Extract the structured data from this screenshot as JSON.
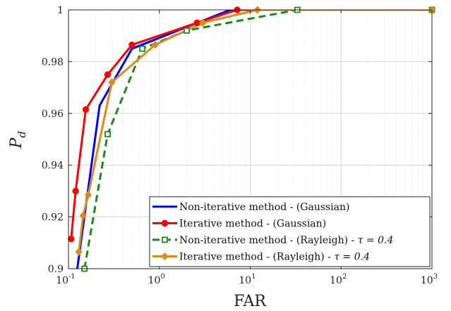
{
  "chart_data": {
    "type": "line",
    "title": "",
    "xlabel": "FAR",
    "ylabel_main": "P",
    "ylabel_sub": "d",
    "xscale": "log",
    "xlim": [
      0.1,
      1000
    ],
    "ylim": [
      0.9,
      1.0
    ],
    "grid": true,
    "legend_position": "bottom-right",
    "x_ticks": [
      {
        "value": 0.1,
        "base": "10",
        "exp": "-1"
      },
      {
        "value": 1,
        "base": "10",
        "exp": "0"
      },
      {
        "value": 10,
        "base": "10",
        "exp": "1"
      },
      {
        "value": 100,
        "base": "10",
        "exp": "2"
      },
      {
        "value": 1000,
        "base": "10",
        "exp": "3"
      }
    ],
    "y_ticks": [
      {
        "value": 0.9,
        "label": "0.9"
      },
      {
        "value": 0.92,
        "label": "0.92"
      },
      {
        "value": 0.94,
        "label": "0.94"
      },
      {
        "value": 0.96,
        "label": "0.96"
      },
      {
        "value": 0.98,
        "label": "0.98"
      },
      {
        "value": 1.0,
        "label": "1"
      }
    ],
    "series": [
      {
        "name": "Non-iterative method - (Gaussian)",
        "color": "#0000ff",
        "dash": "solid",
        "marker": "none",
        "x": [
          0.125,
          0.22,
          0.5,
          6.0,
          1000
        ],
        "y": [
          0.9,
          0.963,
          0.985,
          1.0,
          1.0
        ]
      },
      {
        "name": "Iterative method - (Gaussian)",
        "color": "#ff0000",
        "dash": "solid",
        "marker": "circle",
        "x": [
          0.107,
          0.12,
          0.155,
          0.27,
          0.5,
          2.6,
          7.2,
          1000
        ],
        "y": [
          0.9115,
          0.93,
          0.9615,
          0.975,
          0.9865,
          0.995,
          1.0,
          1.0
        ]
      },
      {
        "name": "Non-iterative method - (Rayleigh) - τ = 0.4",
        "color": "#1a8a1a",
        "dash": "dashed",
        "marker": "square",
        "x": [
          0.15,
          0.27,
          0.65,
          2.0,
          33,
          1000
        ],
        "y": [
          0.9,
          0.952,
          0.985,
          0.992,
          1.0,
          1.0
        ]
      },
      {
        "name": "Iterative method - (Rayleigh) - τ = 0.4",
        "color": "#d98c1a",
        "dash": "solid",
        "marker": "diamond",
        "x": [
          0.13,
          0.145,
          0.165,
          0.3,
          0.9,
          3.0,
          12,
          1000
        ],
        "y": [
          0.9065,
          0.9205,
          0.9285,
          0.972,
          0.9865,
          0.995,
          1.0,
          1.0
        ]
      }
    ],
    "legend": [
      {
        "label": "Non-iterative method - (Gaussian)",
        "tau": ""
      },
      {
        "label": "Iterative method - (Gaussian)",
        "tau": ""
      },
      {
        "label": "Non-iterative method - (Rayleigh) - ",
        "tau": "τ = 0.4"
      },
      {
        "label": "Iterative method - (Rayleigh) - ",
        "tau": "τ = 0.4"
      }
    ]
  }
}
